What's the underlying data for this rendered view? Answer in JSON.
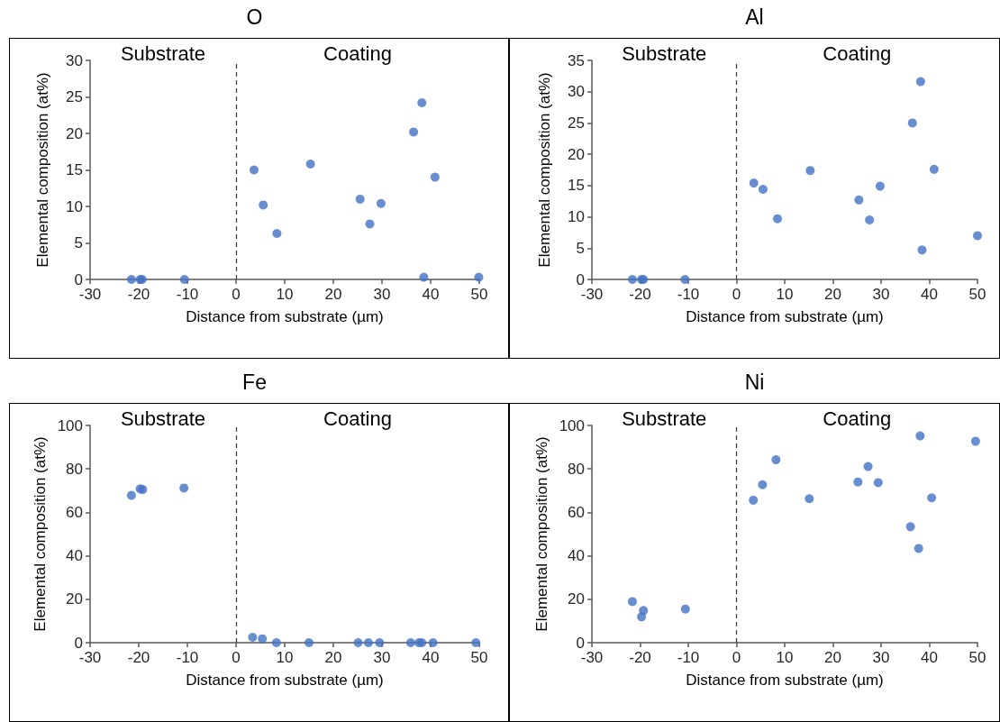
{
  "chart_data": [
    {
      "type": "scatter",
      "title": "O",
      "xlabel": "Distance from substrate (µm)",
      "ylabel": "Elemental composition (at%)",
      "xlim": [
        -30,
        50
      ],
      "xticks": [
        -30,
        -20,
        -10,
        0,
        10,
        20,
        30,
        40,
        50
      ],
      "ylim": [
        0,
        30
      ],
      "yticks": [
        0,
        5,
        10,
        15,
        20,
        25,
        30
      ],
      "grid": false,
      "marker": "circle",
      "annotations": [
        "Substrate",
        "Coating"
      ],
      "ref_lines": [
        {
          "axis": "x",
          "value": 0,
          "line_style": "dashed",
          "color": "#404040"
        }
      ],
      "series": [
        {
          "color": "#4472c4",
          "x": [
            -21.5,
            -19.7,
            -19.3,
            -10.6,
            3.7,
            5.6,
            8.4,
            15.3,
            25.5,
            27.5,
            29.8,
            36.5,
            38.2,
            38.6,
            40.9,
            49.9
          ],
          "values": [
            0,
            0,
            0,
            0,
            15.0,
            10.2,
            6.3,
            15.8,
            11.0,
            7.6,
            10.4,
            20.2,
            24.2,
            0.3,
            14.0,
            0.3
          ]
        }
      ]
    },
    {
      "type": "scatter",
      "title": "Al",
      "xlabel": "Distance from substrate (µm)",
      "ylabel": "Elemental composition (at%)",
      "xlim": [
        -30,
        50
      ],
      "xticks": [
        -30,
        -20,
        -10,
        0,
        10,
        20,
        30,
        40,
        50
      ],
      "ylim": [
        0,
        35
      ],
      "yticks": [
        0,
        5,
        10,
        15,
        20,
        25,
        30,
        35
      ],
      "grid": false,
      "marker": "circle",
      "annotations": [
        "Substrate",
        "Coating"
      ],
      "ref_lines": [
        {
          "axis": "x",
          "value": 0,
          "line_style": "dashed",
          "color": "#404040"
        }
      ],
      "series": [
        {
          "color": "#4472c4",
          "x": [
            -21.6,
            -19.7,
            -19.3,
            -10.7,
            3.6,
            5.5,
            8.5,
            15.3,
            25.4,
            27.6,
            29.8,
            36.5,
            38.2,
            38.5,
            41.0,
            50.0
          ],
          "values": [
            0,
            0,
            0,
            0,
            15.4,
            14.4,
            9.7,
            17.4,
            12.7,
            9.5,
            14.9,
            25.0,
            31.6,
            4.7,
            17.6,
            7.0
          ]
        }
      ]
    },
    {
      "type": "scatter",
      "title": "Fe",
      "xlabel": "Distance from substrate (µm)",
      "ylabel": "Elemental composition (at%)",
      "xlim": [
        -30,
        50
      ],
      "xticks": [
        -30,
        -20,
        -10,
        0,
        10,
        20,
        30,
        40,
        50
      ],
      "ylim": [
        0,
        100
      ],
      "yticks": [
        0,
        20,
        40,
        60,
        80,
        100
      ],
      "grid": false,
      "marker": "circle",
      "annotations": [
        "Substrate",
        "Coating"
      ],
      "ref_lines": [
        {
          "axis": "x",
          "value": 0,
          "line_style": "dashed",
          "color": "#404040"
        }
      ],
      "series": [
        {
          "color": "#4472c4",
          "x": [
            -21.5,
            -19.7,
            -19.2,
            -10.7,
            3.4,
            5.4,
            8.3,
            15.0,
            25.1,
            27.2,
            29.5,
            35.9,
            37.6,
            38.2,
            40.5,
            49.3
          ],
          "values": [
            67.8,
            70.8,
            70.5,
            71.2,
            2.5,
            1.8,
            0,
            0,
            0,
            0,
            0,
            0,
            0,
            0,
            0,
            0
          ]
        }
      ]
    },
    {
      "type": "scatter",
      "title": "Ni",
      "xlabel": "Distance from substrate (µm)",
      "ylabel": "Elemental composition (at%)",
      "xlim": [
        -30,
        50
      ],
      "xticks": [
        -30,
        -20,
        -10,
        0,
        10,
        20,
        30,
        40,
        50
      ],
      "ylim": [
        0,
        100
      ],
      "yticks": [
        0,
        20,
        40,
        60,
        80,
        100
      ],
      "grid": false,
      "marker": "circle",
      "annotations": [
        "Substrate",
        "Coating"
      ],
      "ref_lines": [
        {
          "axis": "x",
          "value": 0,
          "line_style": "dashed",
          "color": "#404040"
        }
      ],
      "series": [
        {
          "color": "#4472c4",
          "x": [
            -21.6,
            -19.7,
            -19.3,
            -10.6,
            3.5,
            5.4,
            8.2,
            15.1,
            25.2,
            27.3,
            29.4,
            36.1,
            37.8,
            38.1,
            40.5,
            49.6
          ],
          "values": [
            18.9,
            11.9,
            14.8,
            15.5,
            65.6,
            72.7,
            84.2,
            66.3,
            74.0,
            81.1,
            73.7,
            53.4,
            43.4,
            95.2,
            66.7,
            92.7
          ]
        }
      ]
    }
  ]
}
